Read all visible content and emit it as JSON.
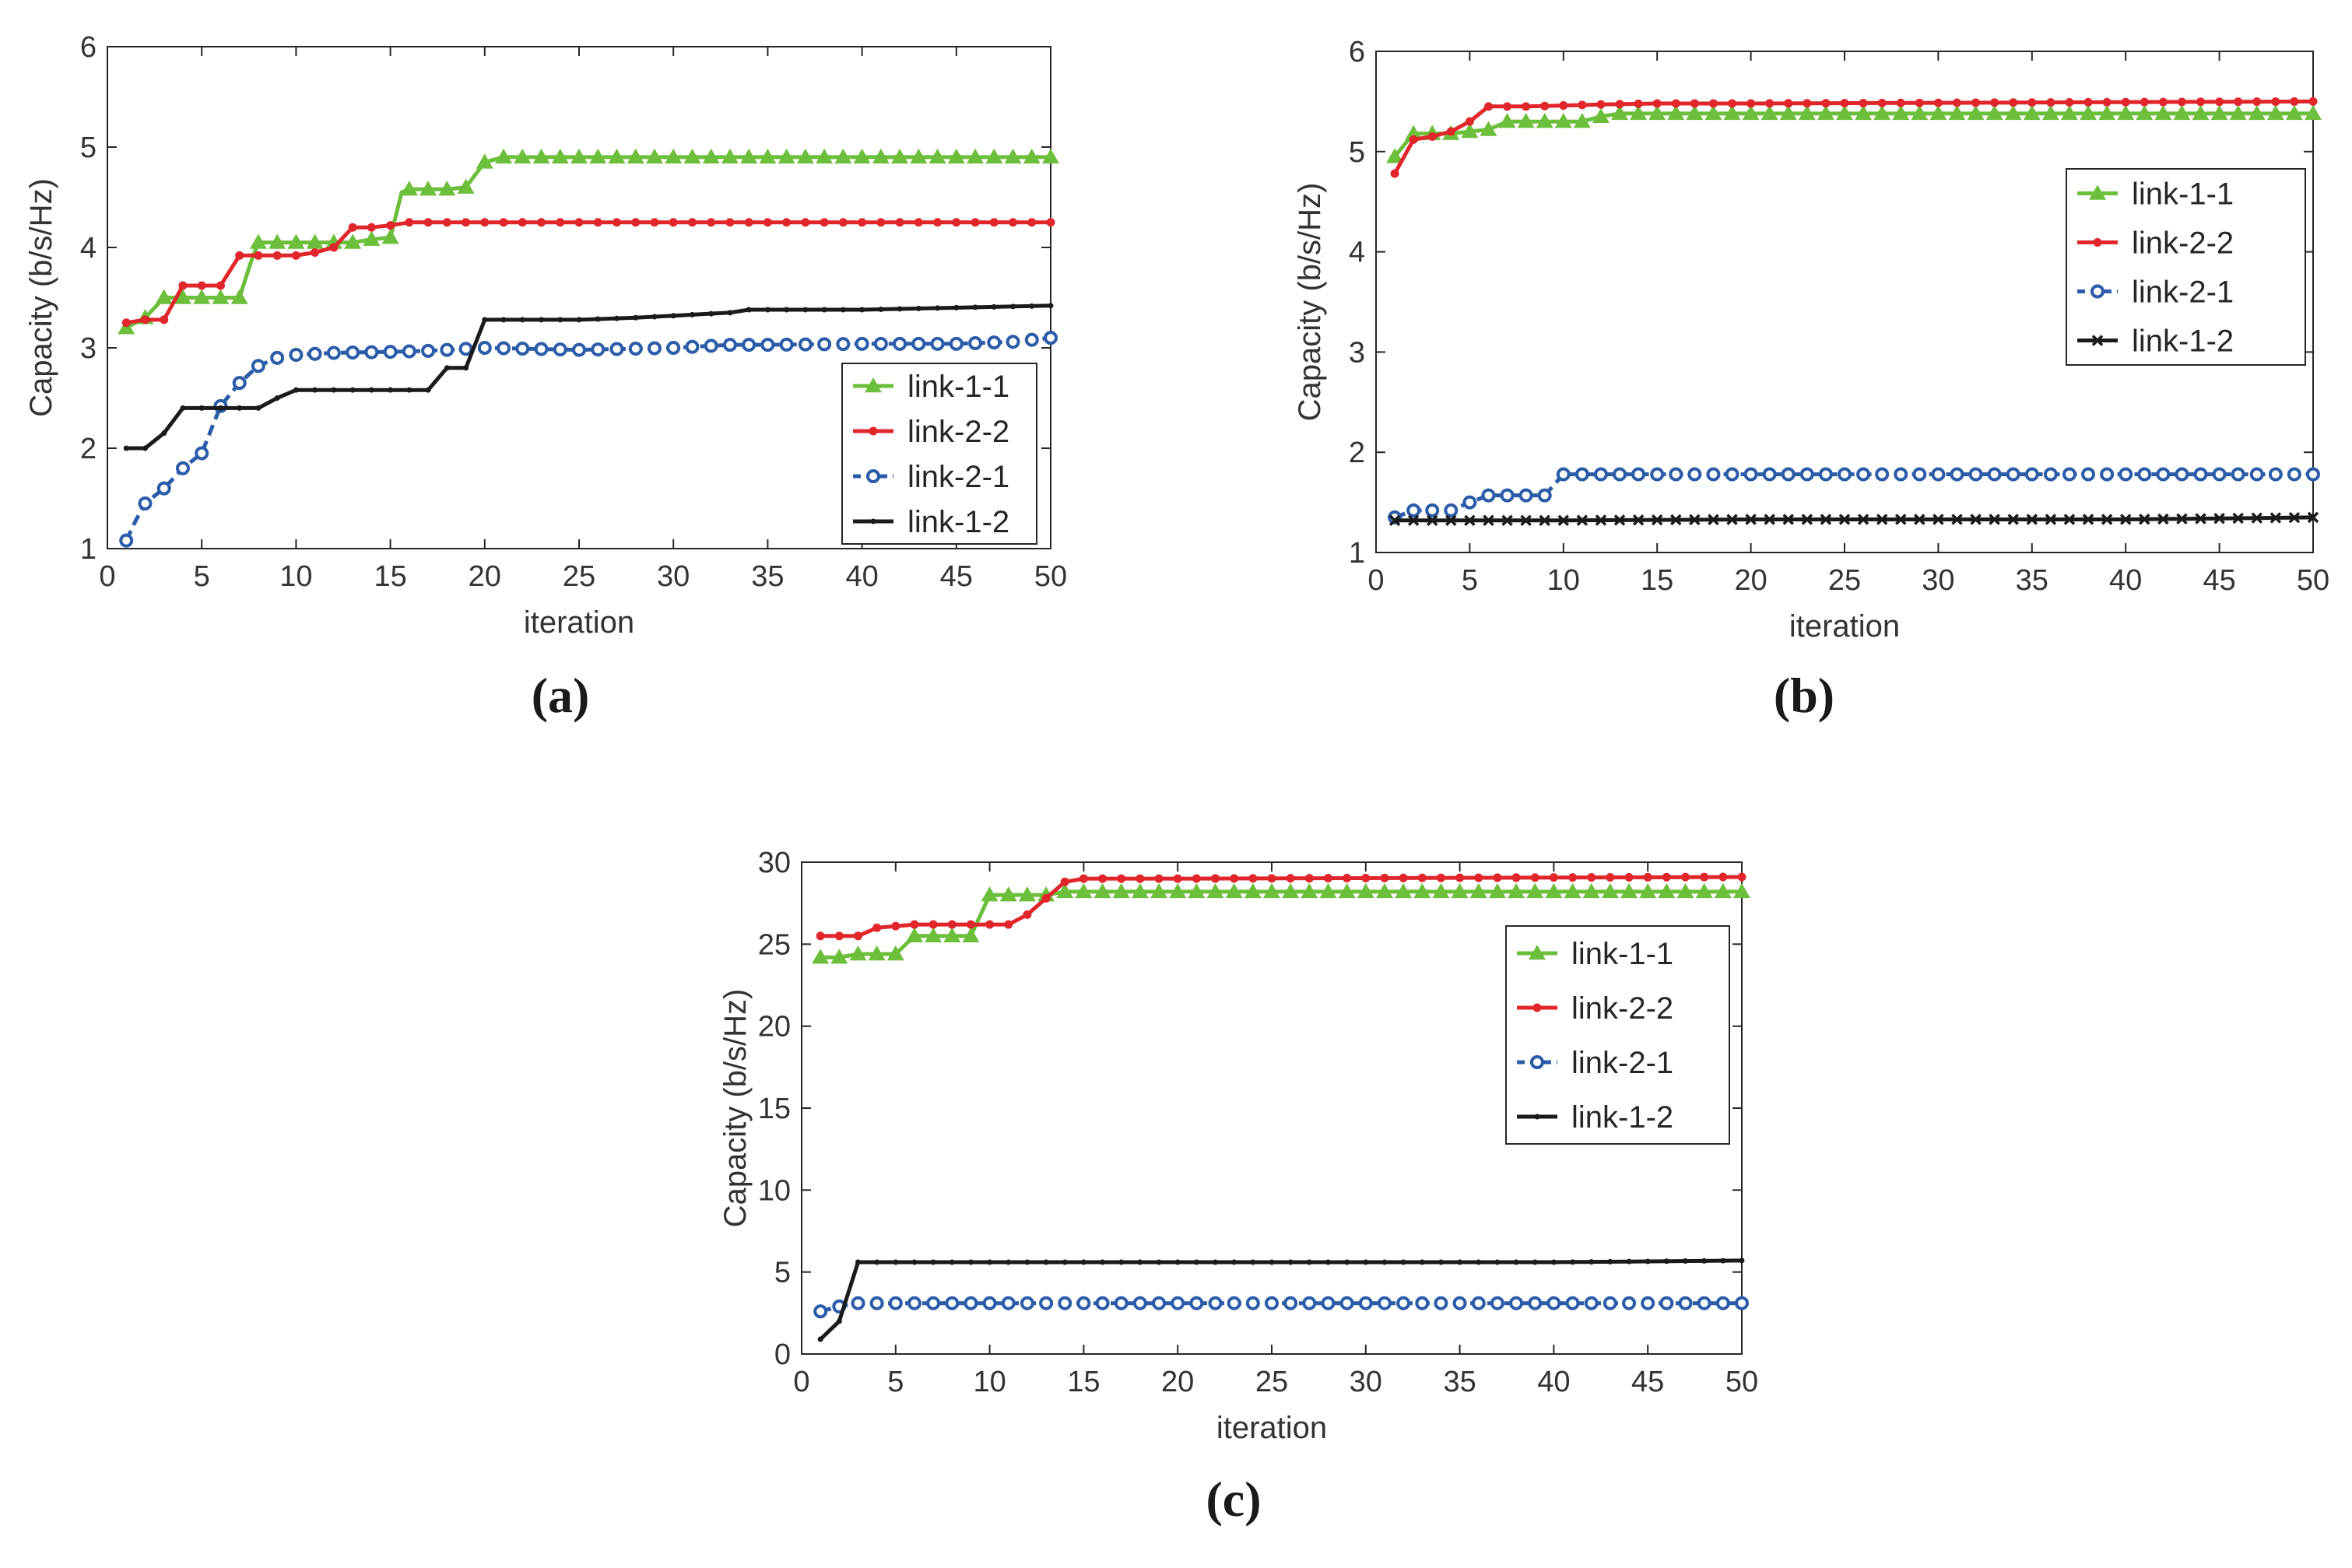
{
  "chart_data": [
    {
      "type": "line",
      "panel_label": "(a)",
      "xlabel": "iteration",
      "ylabel": "Capacity  (b/s/Hz)",
      "xlim": [
        0,
        50
      ],
      "ylim": [
        1,
        6
      ],
      "xticks": [
        0,
        5,
        10,
        15,
        20,
        25,
        30,
        35,
        40,
        45,
        50
      ],
      "yticks": [
        1,
        2,
        3,
        4,
        5,
        6
      ],
      "legend_position": "bottom-right",
      "series": [
        {
          "name": "link-1-1",
          "color": "#6bbf3a",
          "marker": "triangle",
          "dashed": false,
          "x": [
            1,
            2,
            3,
            4,
            5,
            6,
            7,
            7.6,
            8,
            9,
            10,
            11,
            12,
            13,
            14,
            15,
            15.6,
            16,
            17,
            18,
            19,
            20,
            21,
            50
          ],
          "y": [
            3.2,
            3.3,
            3.5,
            3.5,
            3.5,
            3.5,
            3.5,
            3.85,
            4.05,
            4.05,
            4.05,
            4.05,
            4.05,
            4.05,
            4.08,
            4.1,
            4.55,
            4.58,
            4.58,
            4.58,
            4.6,
            4.85,
            4.9,
            4.9
          ]
        },
        {
          "name": "link-2-2",
          "color": "#e0262b",
          "marker": "dot",
          "dashed": false,
          "x": [
            1,
            2,
            3,
            4,
            5,
            6,
            7,
            8,
            9,
            10,
            11,
            12,
            13,
            14,
            15,
            16,
            17,
            20,
            50
          ],
          "y": [
            3.25,
            3.28,
            3.28,
            3.62,
            3.62,
            3.62,
            3.92,
            3.92,
            3.92,
            3.92,
            3.95,
            4.0,
            4.2,
            4.2,
            4.22,
            4.25,
            4.25,
            4.25,
            4.25
          ]
        },
        {
          "name": "link-2-1",
          "color": "#2b5ca8",
          "marker": "circle",
          "dashed": true,
          "x": [
            1,
            1.5,
            2,
            3,
            4,
            5,
            6,
            7,
            8,
            9,
            10,
            12,
            15,
            17,
            19,
            20,
            25,
            30,
            33,
            35,
            40,
            45,
            48,
            50
          ],
          "y": [
            1.08,
            1.28,
            1.45,
            1.6,
            1.8,
            1.95,
            2.42,
            2.65,
            2.82,
            2.9,
            2.93,
            2.95,
            2.96,
            2.97,
            2.99,
            3.0,
            2.98,
            3.0,
            3.03,
            3.03,
            3.04,
            3.04,
            3.06,
            3.1
          ]
        },
        {
          "name": "link-1-2",
          "color": "#1a1a1a",
          "marker": "small-dot",
          "dashed": false,
          "x": [
            1,
            2,
            3,
            4,
            5,
            6,
            7,
            8,
            9,
            10,
            11,
            12,
            13,
            14,
            15,
            16,
            17,
            18,
            19,
            20,
            21,
            25,
            28,
            30,
            33,
            34,
            40,
            50
          ],
          "y": [
            2.0,
            2.0,
            2.15,
            2.4,
            2.4,
            2.4,
            2.4,
            2.4,
            2.5,
            2.58,
            2.58,
            2.58,
            2.58,
            2.58,
            2.58,
            2.58,
            2.58,
            2.8,
            2.8,
            3.28,
            3.28,
            3.28,
            3.3,
            3.32,
            3.35,
            3.38,
            3.38,
            3.42
          ]
        }
      ]
    },
    {
      "type": "line",
      "panel_label": "(b)",
      "xlabel": "iteration",
      "ylabel": "Capacity  (b/s/Hz)",
      "xlim": [
        0,
        50
      ],
      "ylim": [
        1,
        6
      ],
      "xticks": [
        0,
        5,
        10,
        15,
        20,
        25,
        30,
        35,
        40,
        45,
        50
      ],
      "yticks": [
        1,
        2,
        3,
        4,
        5,
        6
      ],
      "legend_position": "top-right",
      "series": [
        {
          "name": "link-1-1",
          "color": "#6bbf3a",
          "marker": "triangle",
          "dashed": false,
          "x": [
            1,
            2,
            3,
            4,
            5,
            6,
            7,
            8,
            9,
            10,
            11,
            12,
            13,
            14,
            50
          ],
          "y": [
            4.95,
            5.18,
            5.18,
            5.18,
            5.2,
            5.22,
            5.3,
            5.3,
            5.3,
            5.3,
            5.3,
            5.35,
            5.38,
            5.38,
            5.38
          ]
        },
        {
          "name": "link-2-2",
          "color": "#e0262b",
          "marker": "dot",
          "dashed": false,
          "x": [
            1,
            2,
            3,
            4,
            5,
            6,
            7,
            8,
            10,
            12,
            15,
            20,
            50
          ],
          "y": [
            4.78,
            5.12,
            5.15,
            5.2,
            5.3,
            5.45,
            5.45,
            5.45,
            5.46,
            5.47,
            5.48,
            5.48,
            5.5
          ]
        },
        {
          "name": "link-2-1",
          "color": "#2b5ca8",
          "marker": "circle",
          "dashed": true,
          "x": [
            1,
            2,
            3,
            4,
            5,
            6,
            7,
            8,
            9,
            10,
            11,
            50
          ],
          "y": [
            1.35,
            1.42,
            1.42,
            1.42,
            1.5,
            1.57,
            1.57,
            1.57,
            1.57,
            1.78,
            1.78,
            1.78
          ]
        },
        {
          "name": "link-1-2",
          "color": "#1a1a1a",
          "marker": "cross",
          "dashed": false,
          "x": [
            1,
            10,
            20,
            30,
            40,
            50
          ],
          "y": [
            1.32,
            1.32,
            1.33,
            1.33,
            1.33,
            1.35
          ]
        }
      ]
    },
    {
      "type": "line",
      "panel_label": "(c)",
      "xlabel": "iteration",
      "ylabel": "Capacity  (b/s/Hz)",
      "xlim": [
        0,
        50
      ],
      "ylim": [
        0,
        30
      ],
      "xticks": [
        0,
        5,
        10,
        15,
        20,
        25,
        30,
        35,
        40,
        45,
        50
      ],
      "yticks": [
        0,
        5,
        10,
        15,
        20,
        25,
        30
      ],
      "legend_position": "top-right",
      "series": [
        {
          "name": "link-1-1",
          "color": "#6bbf3a",
          "marker": "triangle",
          "dashed": false,
          "x": [
            1,
            2,
            3,
            4,
            5,
            6,
            7,
            8,
            9,
            10,
            11,
            12,
            13,
            14,
            15,
            50
          ],
          "y": [
            24.2,
            24.2,
            24.4,
            24.4,
            24.4,
            25.5,
            25.5,
            25.5,
            25.5,
            28.0,
            28.0,
            28.0,
            28.0,
            28.2,
            28.2,
            28.2
          ]
        },
        {
          "name": "link-2-2",
          "color": "#e0262b",
          "marker": "dot",
          "dashed": false,
          "x": [
            1,
            2,
            3,
            4,
            5,
            6,
            7,
            8,
            9,
            10,
            11,
            12,
            13,
            14,
            15,
            20,
            50
          ],
          "y": [
            25.5,
            25.5,
            25.5,
            26.0,
            26.1,
            26.2,
            26.2,
            26.2,
            26.2,
            26.2,
            26.2,
            26.8,
            27.8,
            28.8,
            29.0,
            29.0,
            29.1
          ]
        },
        {
          "name": "link-2-1",
          "color": "#2b5ca8",
          "marker": "circle",
          "dashed": true,
          "x": [
            1,
            2,
            3,
            4,
            50
          ],
          "y": [
            2.6,
            2.9,
            3.1,
            3.1,
            3.1
          ]
        },
        {
          "name": "link-1-2",
          "color": "#1a1a1a",
          "marker": "small-dot",
          "dashed": false,
          "x": [
            1,
            2,
            3,
            4,
            40,
            50
          ],
          "y": [
            0.9,
            2.0,
            5.6,
            5.6,
            5.6,
            5.7
          ]
        }
      ]
    }
  ]
}
